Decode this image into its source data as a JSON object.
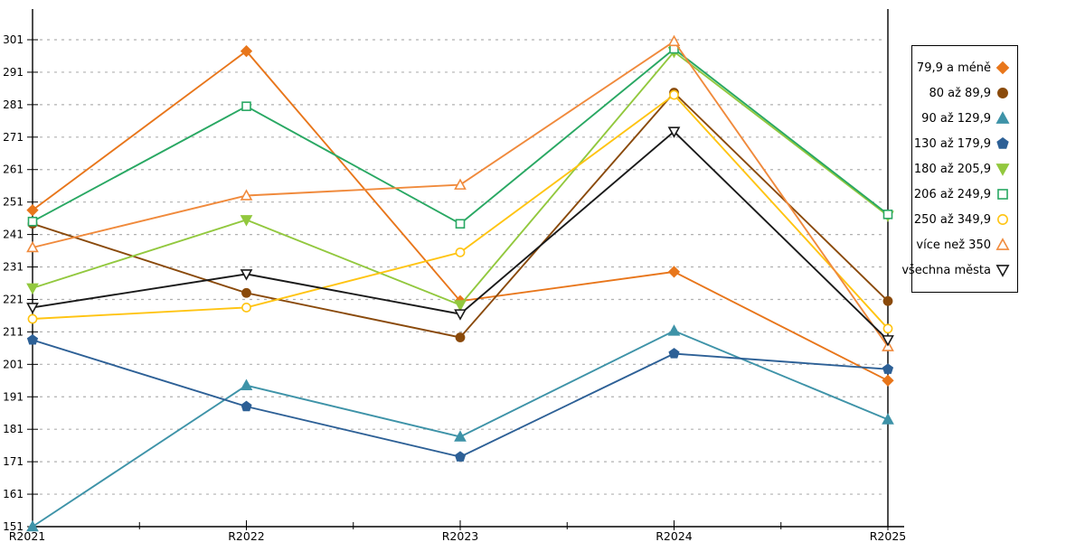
{
  "chart_data": {
    "type": "line",
    "title": "",
    "xlabel": "",
    "ylabel": "",
    "categories": [
      "R2021",
      "R2022",
      "R2023",
      "R2024",
      "R2025"
    ],
    "ylim": [
      151,
      301
    ],
    "ytick_step": 10,
    "grid": "horizontal dotted gray lines at each y tick",
    "legend_position": "right, boxed",
    "series": [
      {
        "name": "79,9 a méně",
        "color": "#E8761B",
        "marker": "diamond",
        "fill": "filled",
        "values": [
          248.5,
          297.5,
          220.5,
          229.5,
          196.0
        ]
      },
      {
        "name": "80 až 89,9",
        "color": "#8A4A0B",
        "marker": "circle",
        "fill": "filled",
        "values": [
          244.3,
          223.0,
          209.3,
          284.7,
          220.5
        ]
      },
      {
        "name": "90 až 129,9",
        "color": "#3E93A8",
        "marker": "triangle-up",
        "fill": "filled",
        "values": [
          151.0,
          194.5,
          178.7,
          211.3,
          184.0
        ]
      },
      {
        "name": "130 až 179,9",
        "color": "#2D6096",
        "marker": "pentagon",
        "fill": "filled",
        "values": [
          208.5,
          188.0,
          172.5,
          204.3,
          199.5
        ]
      },
      {
        "name": "180 až 205,9",
        "color": "#92C83E",
        "marker": "triangle-down",
        "fill": "filled",
        "values": [
          224.5,
          245.5,
          219.3,
          297.3,
          246.8
        ]
      },
      {
        "name": "206 až 249,9",
        "color": "#29A863",
        "marker": "square",
        "fill": "hollow",
        "values": [
          245.0,
          280.5,
          244.3,
          298.2,
          247.2
        ]
      },
      {
        "name": "250 až 349,9",
        "color": "#FFC412",
        "marker": "circle",
        "fill": "hollow",
        "values": [
          215.0,
          218.5,
          235.5,
          284.0,
          212.0
        ]
      },
      {
        "name": "více než 350",
        "color": "#F08A3C",
        "marker": "triangle-up",
        "fill": "hollow",
        "values": [
          237.0,
          253.0,
          256.3,
          300.5,
          206.5
        ]
      },
      {
        "name": "všechna města",
        "color": "#1A1A1A",
        "marker": "triangle-down",
        "fill": "hollow",
        "values": [
          218.5,
          228.8,
          216.5,
          272.7,
          208.5
        ]
      }
    ],
    "axis_color": "#000000",
    "gridline_color": "#b0b0b0"
  }
}
